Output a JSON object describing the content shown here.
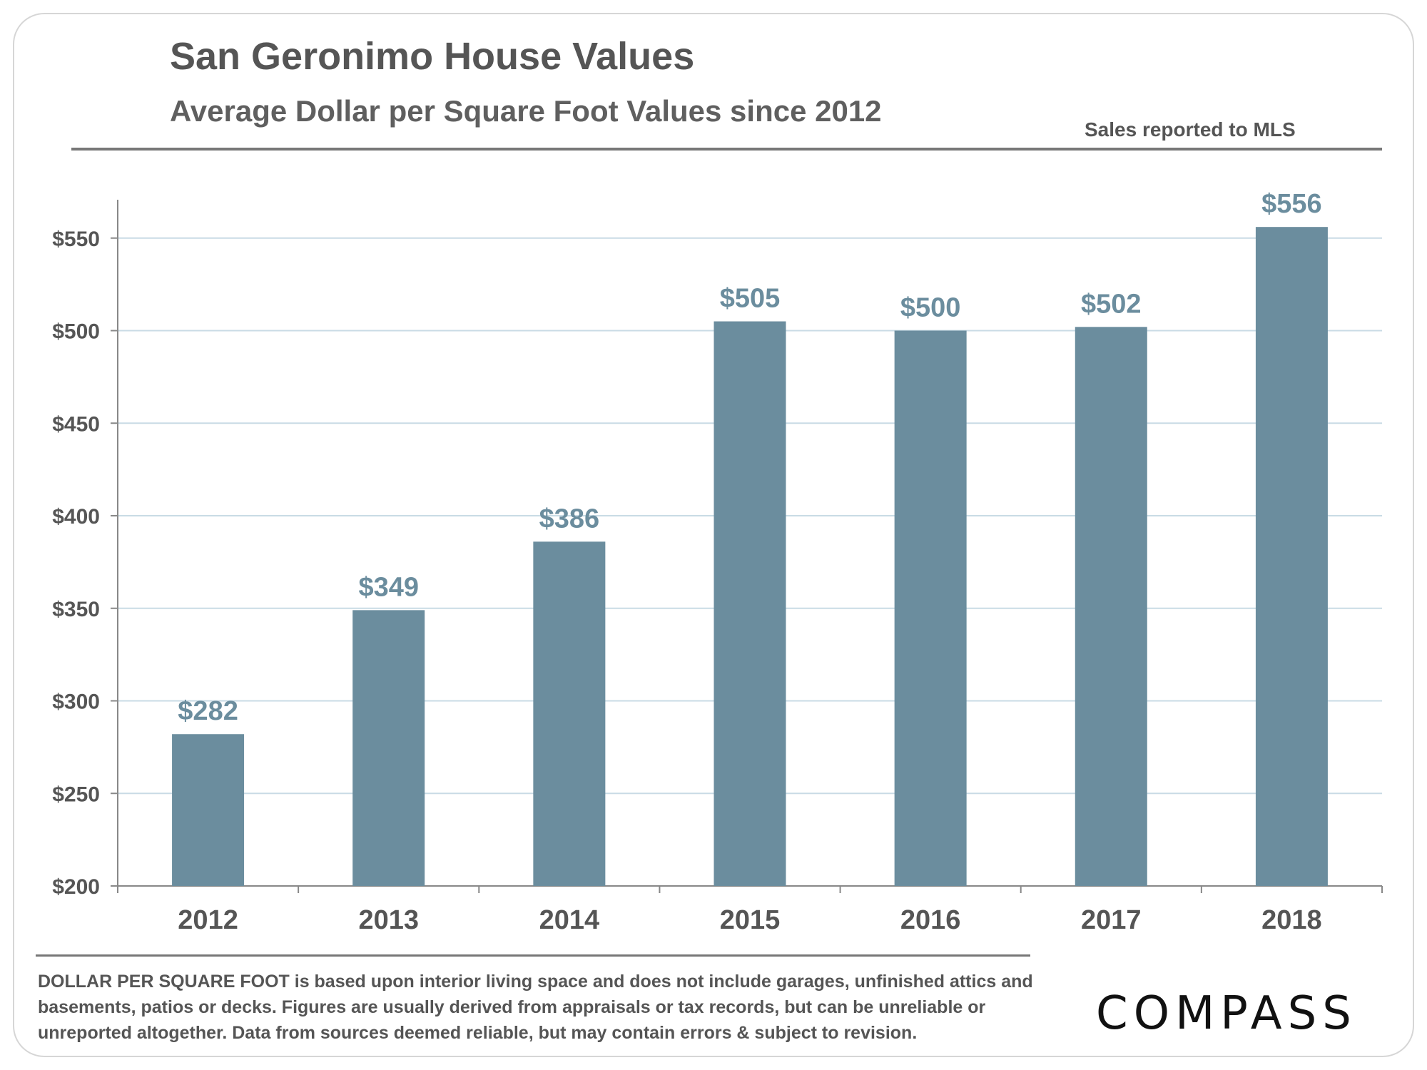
{
  "header": {
    "title": "San Geronimo House Values",
    "subtitle": "Average Dollar per Square Foot Values since 2012",
    "source_note": "Sales reported to MLS"
  },
  "chart_data": {
    "type": "bar",
    "title": "San Geronimo House Values",
    "subtitle": "Average Dollar per Square Foot Values since 2012",
    "xlabel": "",
    "ylabel": "",
    "categories": [
      "2012",
      "2013",
      "2014",
      "2015",
      "2016",
      "2017",
      "2018"
    ],
    "values": [
      282,
      349,
      386,
      505,
      500,
      502,
      556
    ],
    "data_labels": [
      "$282",
      "$349",
      "$386",
      "$505",
      "$500",
      "$502",
      "$556"
    ],
    "ylim": [
      200,
      570
    ],
    "yticks": [
      200,
      250,
      300,
      350,
      400,
      450,
      500,
      550
    ],
    "ytick_labels": [
      "$200",
      "$250",
      "$300",
      "$350",
      "$400",
      "$450",
      "$500",
      "$550"
    ],
    "grid": true,
    "bar_color": "#6b8d9e",
    "label_color": "#6b8d9e",
    "grid_color": "#c9dbe5"
  },
  "footer": {
    "note_lead": "DOLLAR PER SQUARE FOOT",
    "note_body": " is based upon interior living space and does not include garages, unfinished attics and basements, patios or decks. Figures are usually derived from appraisals or tax records, but can be unreliable or unreported altogether. Data from sources deemed reliable, but may contain errors & subject to revision.",
    "brand": "COMPASS"
  }
}
